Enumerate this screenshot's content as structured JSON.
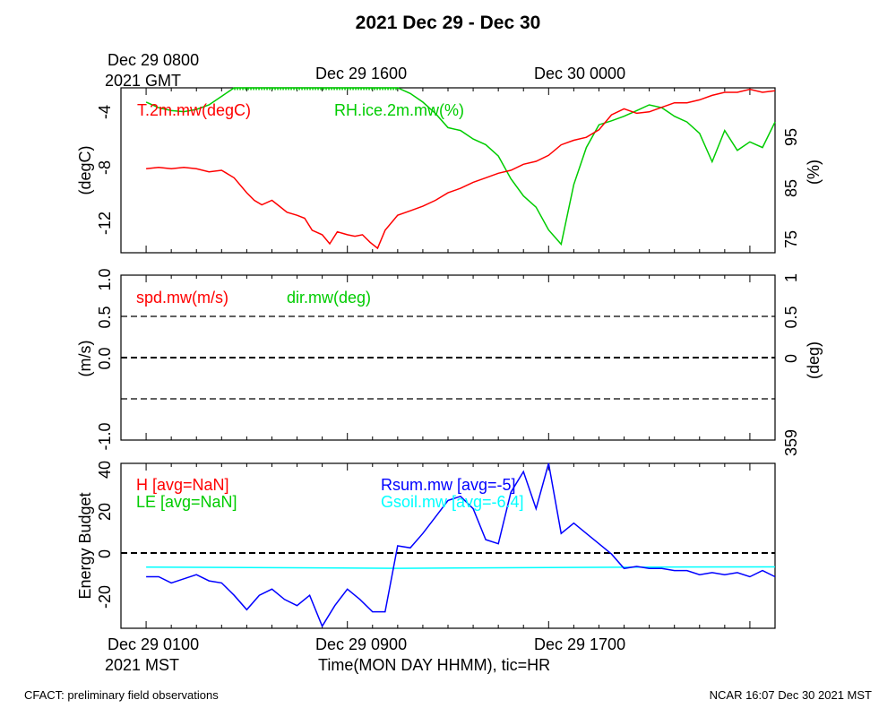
{
  "title": "2021 Dec 29 - Dec 30",
  "gmt_labels": {
    "t1": "Dec 29 0800",
    "t1_year": "2021 GMT",
    "t2": "Dec 29 1600",
    "t3": "Dec 30 0000"
  },
  "mst_labels": {
    "t1": "Dec 29 0100",
    "t1_year": "2021 MST",
    "t2": "Dec 29 0900",
    "t3": "Dec 29 1700"
  },
  "xlabel": "Time(MON DAY HHMM), tic=HR",
  "footer_left": "CFACT: preliminary field observations",
  "footer_right": "NCAR 16:07 Dec 30 2021 MST",
  "colors": {
    "red": "#ff0000",
    "green": "#00cc00",
    "blue": "#0000ff",
    "cyan": "#00ffff",
    "black": "#000000"
  },
  "chart_data": [
    {
      "type": "line",
      "panel": "temperature-humidity",
      "left_axis": {
        "label": "(degC)",
        "ylim": [
          -13.5,
          -2.5
        ],
        "ticks": [
          "-4",
          "-8",
          "-12"
        ],
        "tick_values": [
          -4,
          -8,
          -12
        ]
      },
      "right_axis": {
        "label": "(%)",
        "ylim": [
          72,
          101
        ],
        "ticks": [
          "95",
          "85",
          "75"
        ],
        "tick_values": [
          95,
          85,
          75
        ]
      },
      "x_hours_mst": [
        0,
        25
      ],
      "series": [
        {
          "name": "T.2m.mw(degC)",
          "axis": "left",
          "color": "red",
          "x": [
            0,
            0.5,
            1,
            1.5,
            2,
            2.5,
            3,
            3.2,
            3.5,
            4,
            4.3,
            4.6,
            5,
            5.3,
            5.6,
            6,
            6.3,
            6.6,
            7,
            7.3,
            7.6,
            8,
            8.3,
            8.6,
            8.9,
            9.2,
            9.5,
            10,
            10.5,
            11,
            11.5,
            12,
            12.5,
            13,
            13.5,
            14,
            14.5,
            15,
            15.5,
            16,
            16.5,
            17,
            17.5,
            18,
            18.5,
            19,
            19.5,
            20,
            20.5,
            21,
            21.5,
            22,
            22.5,
            23,
            23.5,
            24,
            24.5,
            25
          ],
          "y": [
            -7.9,
            -7.8,
            -7.9,
            -7.8,
            -7.9,
            -8.1,
            -8.0,
            -8.2,
            -8.5,
            -9.5,
            -10.0,
            -10.3,
            -10.0,
            -10.4,
            -10.8,
            -11.0,
            -11.2,
            -12.0,
            -12.3,
            -12.9,
            -12.1,
            -12.3,
            -12.4,
            -12.3,
            -12.8,
            -13.2,
            -12.0,
            -11.0,
            -10.7,
            -10.4,
            -10.0,
            -9.5,
            -9.2,
            -8.8,
            -8.5,
            -8.2,
            -8.0,
            -7.6,
            -7.4,
            -7.0,
            -6.3,
            -6.0,
            -5.8,
            -5.3,
            -4.3,
            -3.9,
            -4.2,
            -4.1,
            -3.8,
            -3.5,
            -3.5,
            -3.3,
            -3.0,
            -2.8,
            -2.8,
            -2.6,
            -2.8,
            -2.7
          ]
        },
        {
          "name": "RH.ice.2m.mw(%)",
          "axis": "right",
          "color": "green",
          "x": [
            0,
            0.5,
            1,
            1.5,
            2,
            2.5,
            3,
            3.5,
            4,
            5,
            6,
            7,
            8,
            9,
            10,
            10.5,
            11,
            11.5,
            12,
            12.5,
            13,
            13.5,
            14,
            14.5,
            15,
            15.5,
            16,
            16.5,
            17,
            17.5,
            18,
            18.5,
            19,
            19.5,
            20,
            20.5,
            21,
            21.5,
            22,
            22.5,
            23,
            23.5,
            24,
            24.5,
            25
          ],
          "y": [
            98.5,
            97.5,
            97.0,
            96.8,
            97.2,
            98.0,
            99.5,
            101,
            101,
            101,
            101,
            101,
            101,
            101,
            101,
            100,
            98.5,
            96.5,
            94.0,
            93.5,
            92.0,
            91.0,
            89.0,
            85.0,
            82.0,
            80.0,
            76.0,
            73.5,
            84.0,
            90.5,
            94.5,
            95.2,
            96.0,
            97.0,
            98.0,
            97.5,
            96.0,
            95.0,
            93.0,
            88.0,
            93.5,
            90.0,
            91.5,
            90.5,
            95.0
          ]
        }
      ]
    },
    {
      "type": "line",
      "panel": "wind",
      "left_axis": {
        "label": "(m/s)",
        "ylim": [
          -1.0,
          1.0
        ],
        "ticks": [
          "1.0",
          "0.5",
          "0.0",
          "-1.0"
        ],
        "tick_values": [
          1.0,
          0.5,
          0.0,
          -1.0
        ]
      },
      "right_axis": {
        "label": "(deg)",
        "ticks": [
          "1",
          "0.5",
          "0",
          "359"
        ]
      },
      "series": [
        {
          "name": "spd.mw(m/s)",
          "color": "red",
          "x": [],
          "y": []
        },
        {
          "name": "dir.mw(deg)",
          "color": "green",
          "x": [],
          "y": []
        }
      ],
      "reference_lines": [
        0.5,
        0.0,
        -0.5
      ]
    },
    {
      "type": "line",
      "panel": "energy-budget",
      "left_axis": {
        "label": "Energy Budget",
        "ylim": [
          -36,
          44
        ],
        "ticks": [
          "40",
          "20",
          "0",
          "-20"
        ],
        "tick_values": [
          40,
          20,
          0,
          -20
        ]
      },
      "series": [
        {
          "name": "H [avg=NaN]",
          "color": "red",
          "x": [],
          "y": []
        },
        {
          "name": "LE [avg=NaN]",
          "color": "green",
          "x": [],
          "y": []
        },
        {
          "name": "Rsum.mw [avg=-5]",
          "color": "blue",
          "x": [
            0,
            0.5,
            1,
            1.5,
            2,
            2.5,
            3,
            3.5,
            4,
            4.5,
            5,
            5.5,
            6,
            6.5,
            7,
            7.5,
            8,
            8.5,
            9,
            9.5,
            10,
            10.5,
            11,
            11.5,
            12,
            12.5,
            13,
            13.5,
            14,
            14.5,
            15,
            15.5,
            16,
            16.5,
            17,
            17.5,
            18,
            18.5,
            19,
            19.5,
            20,
            20.5,
            21,
            21.5,
            22,
            22.5,
            23,
            23.5,
            24,
            24.5,
            25
          ],
          "y": [
            -11,
            -11,
            -14,
            -12,
            -10,
            -13,
            -14,
            -20,
            -27,
            -20,
            -17,
            -22,
            -25,
            -20,
            -35,
            -25,
            -17,
            -22,
            -28,
            -28,
            4,
            3,
            10,
            18,
            26,
            28,
            22,
            7,
            5,
            30,
            40,
            22,
            44,
            10,
            15,
            10,
            5,
            0,
            -7,
            -6,
            -7,
            -7,
            -8,
            -8,
            -10,
            -9,
            -10,
            -9,
            -11,
            -8,
            -11
          ]
        },
        {
          "name": "Gsoil.mw [avg=-6.4]",
          "color": "cyan",
          "x": [
            0,
            5,
            10,
            15,
            20,
            25
          ],
          "y": [
            -6.3,
            -6.6,
            -6.9,
            -6.6,
            -6.3,
            -6.2
          ]
        }
      ],
      "reference_lines": [
        0
      ]
    }
  ]
}
